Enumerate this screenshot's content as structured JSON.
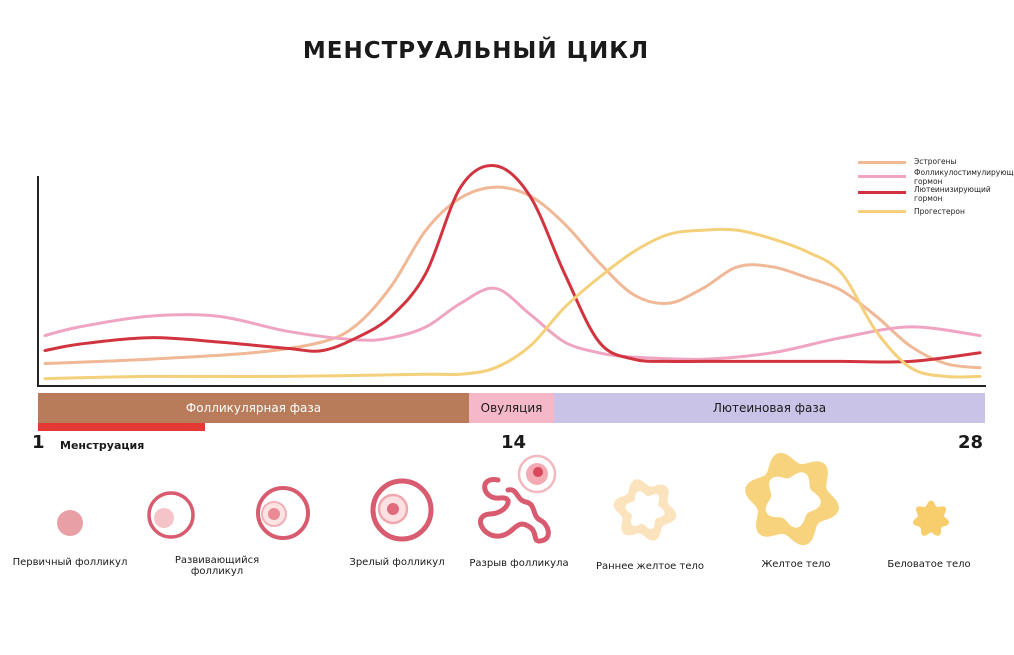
{
  "title": "МЕНСТРУАЛЬНЫЙ ЦИКЛ",
  "colors": {
    "estrogen": "#f0b896",
    "fsh": "#efa5c2",
    "lh": "#d1343f",
    "progesterone": "#f5d07a",
    "follicular": "#b87c5a",
    "ovulation": "#f5b8c9",
    "luteal": "#c9c3e8",
    "menstruation": "#e53935"
  },
  "legend": [
    {
      "label": "Эстрогены",
      "color_key": "estrogen"
    },
    {
      "label": "Фолликулостимулирующий гормон",
      "color_key": "fsh"
    },
    {
      "label": "Лютеинизирующий гормон",
      "color_key": "lh"
    },
    {
      "label": "Прогестерон",
      "color_key": "progesterone"
    }
  ],
  "phases": {
    "follicular": "Фолликулярная фаза",
    "ovulation": "Овуляция",
    "luteal": "Лютеиновая фаза"
  },
  "menstruation": "Менструация",
  "days": {
    "start": "1",
    "mid": "14",
    "end": "28"
  },
  "stages": [
    "Первичный фолликул",
    "Развивающийся фолликул",
    "Зрелый фолликул",
    "Разрыв фолликула",
    "Раннее желтое тело",
    "Желтое тело",
    "Беловатое тело"
  ],
  "chart_data": {
    "type": "line",
    "title": "МЕНСТРУАЛЬНЫЙ ЦИКЛ",
    "xlabel": "",
    "ylabel": "",
    "xlim": [
      1,
      28
    ],
    "ylim": [
      0,
      100
    ],
    "x_ticks": [
      "1",
      "14",
      "28"
    ],
    "series": [
      {
        "name": "Эстрогены",
        "color_key": "estrogen",
        "x": [
          1,
          4,
          7,
          9,
          10,
          11,
          12,
          13,
          14,
          15,
          16,
          17,
          18,
          19,
          20,
          21,
          22,
          23,
          24,
          25,
          26,
          27,
          28
        ],
        "values": [
          10,
          12,
          15,
          20,
          28,
          46,
          72,
          87,
          92,
          88,
          75,
          57,
          42,
          38,
          45,
          55,
          55,
          50,
          44,
          32,
          18,
          10,
          8
        ]
      },
      {
        "name": "Фолликулостимулирующий гормон",
        "color_key": "fsh",
        "x": [
          1,
          2,
          4,
          6,
          8,
          10,
          11,
          12,
          13,
          14,
          15,
          16,
          17,
          18,
          20,
          22,
          24,
          26,
          28
        ],
        "values": [
          23,
          27,
          32,
          32,
          25,
          21,
          22,
          27,
          38,
          45,
          33,
          20,
          15,
          13,
          12,
          15,
          22,
          27,
          23
        ]
      },
      {
        "name": "Лютеинизирующий гормон",
        "color_key": "lh",
        "x": [
          1,
          2,
          4,
          6,
          8,
          9,
          10,
          11,
          12,
          13,
          14,
          15,
          16,
          17,
          18,
          19,
          20,
          22,
          24,
          26,
          28
        ],
        "values": [
          16,
          19,
          22,
          20,
          17,
          16,
          22,
          32,
          52,
          92,
          102,
          88,
          52,
          20,
          12,
          11,
          11,
          11,
          11,
          11,
          15
        ]
      },
      {
        "name": "Прогестерон",
        "color_key": "progesterone",
        "x": [
          1,
          4,
          8,
          12,
          13,
          14,
          15,
          16,
          17,
          18,
          19,
          20,
          21,
          22,
          23,
          24,
          25,
          26,
          27,
          28
        ],
        "values": [
          3,
          4,
          4,
          5,
          5,
          8,
          18,
          36,
          50,
          62,
          70,
          72,
          72,
          68,
          62,
          52,
          25,
          8,
          4,
          4
        ]
      }
    ]
  }
}
